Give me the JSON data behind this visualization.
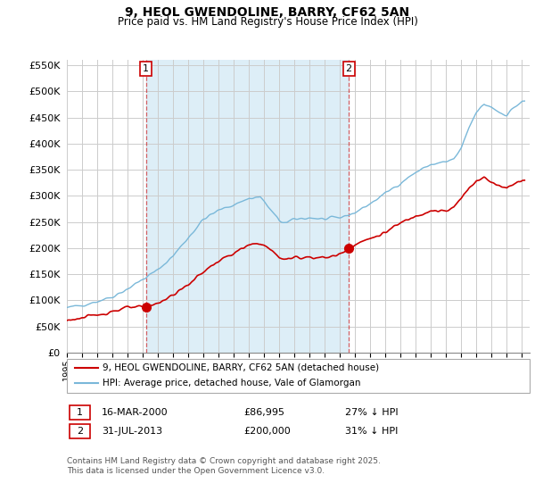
{
  "title": "9, HEOL GWENDOLINE, BARRY, CF62 5AN",
  "subtitle": "Price paid vs. HM Land Registry's House Price Index (HPI)",
  "ylim": [
    0,
    560000
  ],
  "yticks": [
    0,
    50000,
    100000,
    150000,
    200000,
    250000,
    300000,
    350000,
    400000,
    450000,
    500000,
    550000
  ],
  "xlim_start": 1995.0,
  "xlim_end": 2025.5,
  "hpi_color": "#7ab8d9",
  "hpi_fill_color": "#ddeef7",
  "price_color": "#cc0000",
  "annotation_color": "#cc0000",
  "grid_color": "#cccccc",
  "purchase1_date": 2000.21,
  "purchase1_price": 86995,
  "purchase1_label": "1",
  "purchase2_date": 2013.58,
  "purchase2_price": 200000,
  "purchase2_label": "2",
  "legend_line1": "9, HEOL GWENDOLINE, BARRY, CF62 5AN (detached house)",
  "legend_line2": "HPI: Average price, detached house, Vale of Glamorgan",
  "table_row1": [
    "1",
    "16-MAR-2000",
    "£86,995",
    "27% ↓ HPI"
  ],
  "table_row2": [
    "2",
    "31-JUL-2013",
    "£200,000",
    "31% ↓ HPI"
  ],
  "footnote": "Contains HM Land Registry data © Crown copyright and database right 2025.\nThis data is licensed under the Open Government Licence v3.0."
}
